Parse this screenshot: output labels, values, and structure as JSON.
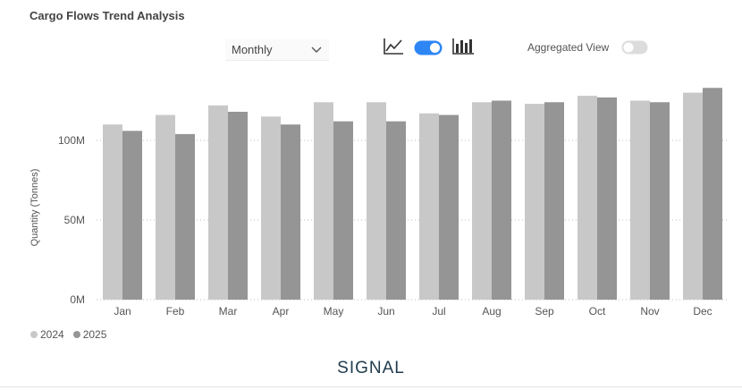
{
  "header": {
    "title": "Cargo Flows Trend Analysis",
    "period_select": "Monthly",
    "aggregated_label": "Aggregated View",
    "aggregated_on": false,
    "view_toggle_on": true
  },
  "brand": {
    "text": "SIGNAL"
  },
  "colors": {
    "series_2024": "#c8c8c8",
    "series_2025": "#959595",
    "toggle_on": "#2e86f5",
    "toggle_off": "#dcdcdc"
  },
  "icons": {
    "line": "line-chart-icon",
    "bar": "bar-chart-icon",
    "select": "chevron-down-icon"
  },
  "chart_data": {
    "type": "bar",
    "ylabel": "Quantity (Tonnes)",
    "xlabel": "",
    "ylim": [
      0,
      130000000
    ],
    "yticks": [
      0,
      50000000,
      100000000
    ],
    "ytick_labels": [
      "0M",
      "50M",
      "100M"
    ],
    "grid": "horizontal-dotted",
    "legend_position": "bottom-left",
    "categories": [
      "Jan",
      "Feb",
      "Mar",
      "Apr",
      "May",
      "Jun",
      "Jul",
      "Aug",
      "Sep",
      "Oct",
      "Nov",
      "Dec"
    ],
    "series": [
      {
        "name": "2024",
        "values": [
          110000000,
          116000000,
          122000000,
          115000000,
          124000000,
          124000000,
          117000000,
          124000000,
          123000000,
          128000000,
          125000000,
          130000000
        ]
      },
      {
        "name": "2025",
        "values": [
          106000000,
          104000000,
          118000000,
          110000000,
          112000000,
          112000000,
          116000000,
          125000000,
          124000000,
          127000000,
          124000000,
          133000000
        ]
      }
    ]
  }
}
